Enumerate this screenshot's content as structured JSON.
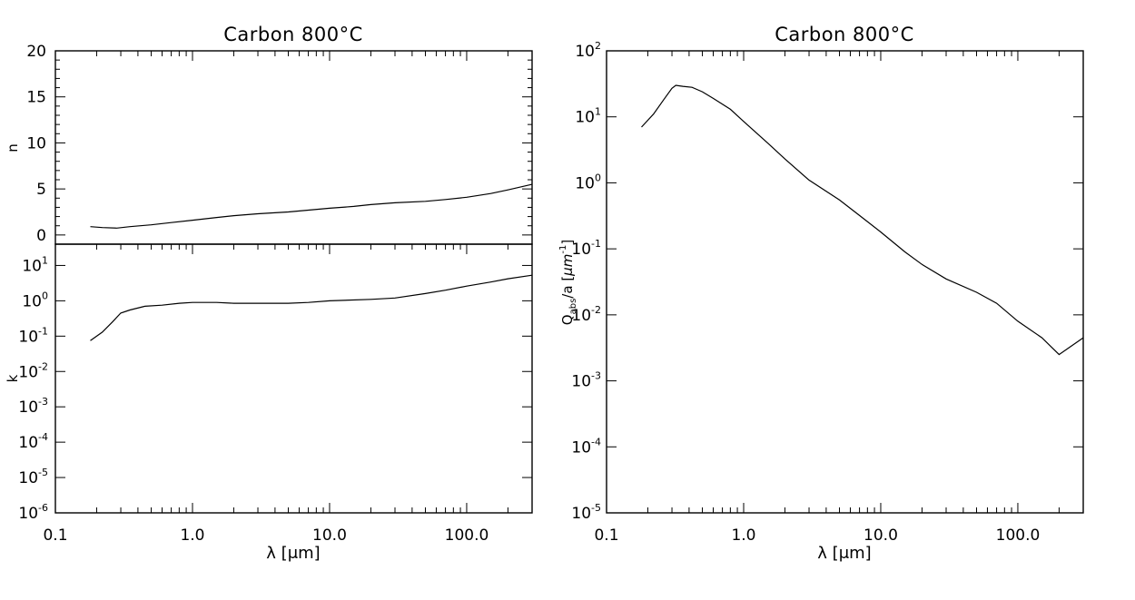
{
  "chart_data": [
    {
      "type": "line",
      "title": "Carbon 800°C",
      "xlabel": "λ [μm]",
      "ylabel": "n",
      "xscale": "log",
      "yscale": "linear",
      "xlim": [
        0.1,
        300
      ],
      "ylim": [
        -1,
        20
      ],
      "x_ticks": [
        "0.1",
        "1.0",
        "10.0",
        "100.0"
      ],
      "y_ticks": [
        "0",
        "5",
        "10",
        "15",
        "20"
      ],
      "x": [
        0.18,
        0.22,
        0.28,
        0.35,
        0.5,
        0.7,
        1.0,
        1.5,
        2.0,
        3.0,
        5.0,
        7.0,
        10.0,
        15.0,
        20.0,
        30.0,
        50.0,
        70.0,
        100.0,
        150.0,
        200.0,
        300.0
      ],
      "y": [
        0.9,
        0.8,
        0.75,
        0.9,
        1.1,
        1.35,
        1.6,
        1.9,
        2.1,
        2.3,
        2.5,
        2.7,
        2.9,
        3.1,
        3.3,
        3.5,
        3.65,
        3.85,
        4.1,
        4.5,
        4.9,
        5.5
      ]
    },
    {
      "type": "line",
      "xlabel": "λ [μm]",
      "ylabel": "k",
      "xscale": "log",
      "yscale": "log",
      "xlim": [
        0.1,
        300
      ],
      "ylim": [
        1e-06,
        40
      ],
      "x_ticks": [
        "0.1",
        "1.0",
        "10.0",
        "100.0"
      ],
      "y_ticks": [
        {
          "base": "10",
          "exp": "1",
          "value": 10
        },
        {
          "base": "10",
          "exp": "0",
          "value": 1
        },
        {
          "base": "10",
          "exp": "-1",
          "value": 0.1
        },
        {
          "base": "10",
          "exp": "-2",
          "value": 0.01
        },
        {
          "base": "10",
          "exp": "-3",
          "value": 0.001
        },
        {
          "base": "10",
          "exp": "-4",
          "value": 0.0001
        },
        {
          "base": "10",
          "exp": "-5",
          "value": 1e-05
        },
        {
          "base": "10",
          "exp": "-6",
          "value": 1e-06
        }
      ],
      "x": [
        0.18,
        0.22,
        0.26,
        0.3,
        0.35,
        0.45,
        0.6,
        0.8,
        1.0,
        1.5,
        2.0,
        3.0,
        5.0,
        7.0,
        10.0,
        20.0,
        30.0,
        50.0,
        70.0,
        100.0,
        150.0,
        200.0,
        300.0
      ],
      "y": [
        0.075,
        0.13,
        0.25,
        0.45,
        0.55,
        0.7,
        0.75,
        0.85,
        0.9,
        0.9,
        0.85,
        0.85,
        0.85,
        0.9,
        1.0,
        1.1,
        1.2,
        1.6,
        2.0,
        2.6,
        3.4,
        4.2,
        5.3
      ]
    },
    {
      "type": "line",
      "title": "Carbon 800°C",
      "xlabel": "λ [μm]",
      "ylabel": {
        "q": "Q",
        "sub": "abs",
        "mid": "/a [",
        "mu": "μm",
        "sup": "-1",
        "end": "]"
      },
      "xscale": "log",
      "yscale": "log",
      "xlim": [
        0.1,
        300
      ],
      "ylim": [
        1e-05,
        100
      ],
      "x_ticks": [
        "0.1",
        "1.0",
        "10.0",
        "100.0"
      ],
      "y_ticks": [
        {
          "base": "10",
          "exp": "2",
          "value": 100
        },
        {
          "base": "10",
          "exp": "1",
          "value": 10
        },
        {
          "base": "10",
          "exp": "0",
          "value": 1
        },
        {
          "base": "10",
          "exp": "-1",
          "value": 0.1
        },
        {
          "base": "10",
          "exp": "-2",
          "value": 0.01
        },
        {
          "base": "10",
          "exp": "-3",
          "value": 0.001
        },
        {
          "base": "10",
          "exp": "-4",
          "value": 0.0001
        },
        {
          "base": "10",
          "exp": "-5",
          "value": 1e-05
        }
      ],
      "x": [
        0.18,
        0.22,
        0.26,
        0.3,
        0.32,
        0.36,
        0.42,
        0.5,
        0.6,
        0.8,
        1.0,
        1.5,
        2.0,
        3.0,
        5.0,
        7.0,
        10.0,
        15.0,
        20.0,
        30.0,
        50.0,
        70.0,
        100.0,
        150.0,
        200.0,
        300.0
      ],
      "y": [
        7.0,
        11.0,
        18.0,
        27.0,
        30.0,
        29.0,
        28.0,
        24.0,
        19.0,
        13.0,
        8.5,
        4.0,
        2.3,
        1.1,
        0.55,
        0.32,
        0.18,
        0.09,
        0.058,
        0.035,
        0.022,
        0.015,
        0.008,
        0.0045,
        0.0025,
        0.0045
      ]
    }
  ]
}
